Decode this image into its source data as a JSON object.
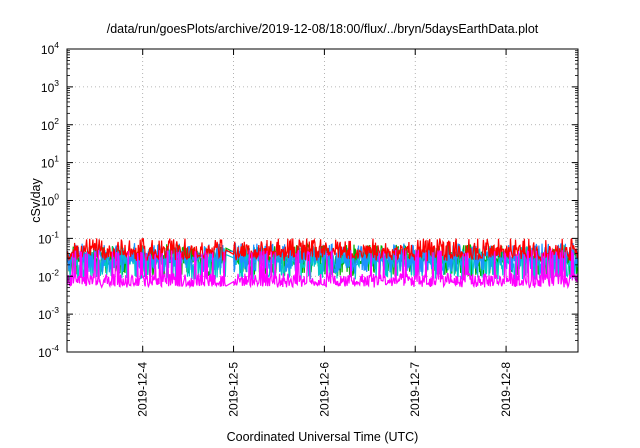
{
  "chart_data": {
    "type": "line",
    "title": "/data/run/goesPlots/archive/2019-12-08/18:00/flux/../bryn/5daysEarthData.plot",
    "xlabel": "Coordinated Universal Time (UTC)",
    "ylabel": "cSv/day",
    "yscale": "log",
    "ylim": [
      0.0001,
      10000
    ],
    "xlim": [
      "2019-12-03 04:00",
      "2019-12-08 19:00"
    ],
    "grid": true,
    "x_tick_labels": [
      "2019-12-4",
      "2019-12-5",
      "2019-12-6",
      "2019-12-7",
      "2019-12-8"
    ],
    "x_ticks": [
      "2019-12-04",
      "2019-12-05",
      "2019-12-06",
      "2019-12-07",
      "2019-12-08"
    ],
    "y_ticks": [
      {
        "value": 0.0001,
        "base": "10",
        "exp": "-4"
      },
      {
        "value": 0.001,
        "base": "10",
        "exp": "-3"
      },
      {
        "value": 0.01,
        "base": "10",
        "exp": "-2"
      },
      {
        "value": 0.1,
        "base": "10",
        "exp": "-1"
      },
      {
        "value": 1,
        "base": "10",
        "exp": "0"
      },
      {
        "value": 10,
        "base": "10",
        "exp": "1"
      },
      {
        "value": 100,
        "base": "10",
        "exp": "2"
      },
      {
        "value": 1000,
        "base": "10",
        "exp": "3"
      },
      {
        "value": 10000,
        "base": "10",
        "exp": "4"
      }
    ],
    "gap": [
      "2019-12-04 22:00",
      "2019-12-05 00:00"
    ],
    "series": [
      {
        "color": "#ff0000",
        "base": 0.045,
        "spike_max": 0.1,
        "dip_min": 0.025,
        "values_summary": "mostly 0.03-0.1"
      },
      {
        "color": "#00b000",
        "base": 0.03,
        "spike_max": 0.07,
        "dip_min": 0.01,
        "values_summary": "mostly 0.01-0.07"
      },
      {
        "color": "#1e90ff",
        "base": 0.032,
        "spike_max": 0.075,
        "dip_min": 0.012,
        "values_summary": "mostly 0.012-0.075"
      },
      {
        "color": "#00c8c8",
        "base": 0.025,
        "spike_max": 0.06,
        "dip_min": 0.008,
        "values_summary": "mostly 0.008-0.06"
      },
      {
        "color": "#ff00ff",
        "base": 0.008,
        "spike_max": 0.05,
        "dip_min": 0.005,
        "values_summary": "mostly 0.005-0.05"
      }
    ]
  }
}
